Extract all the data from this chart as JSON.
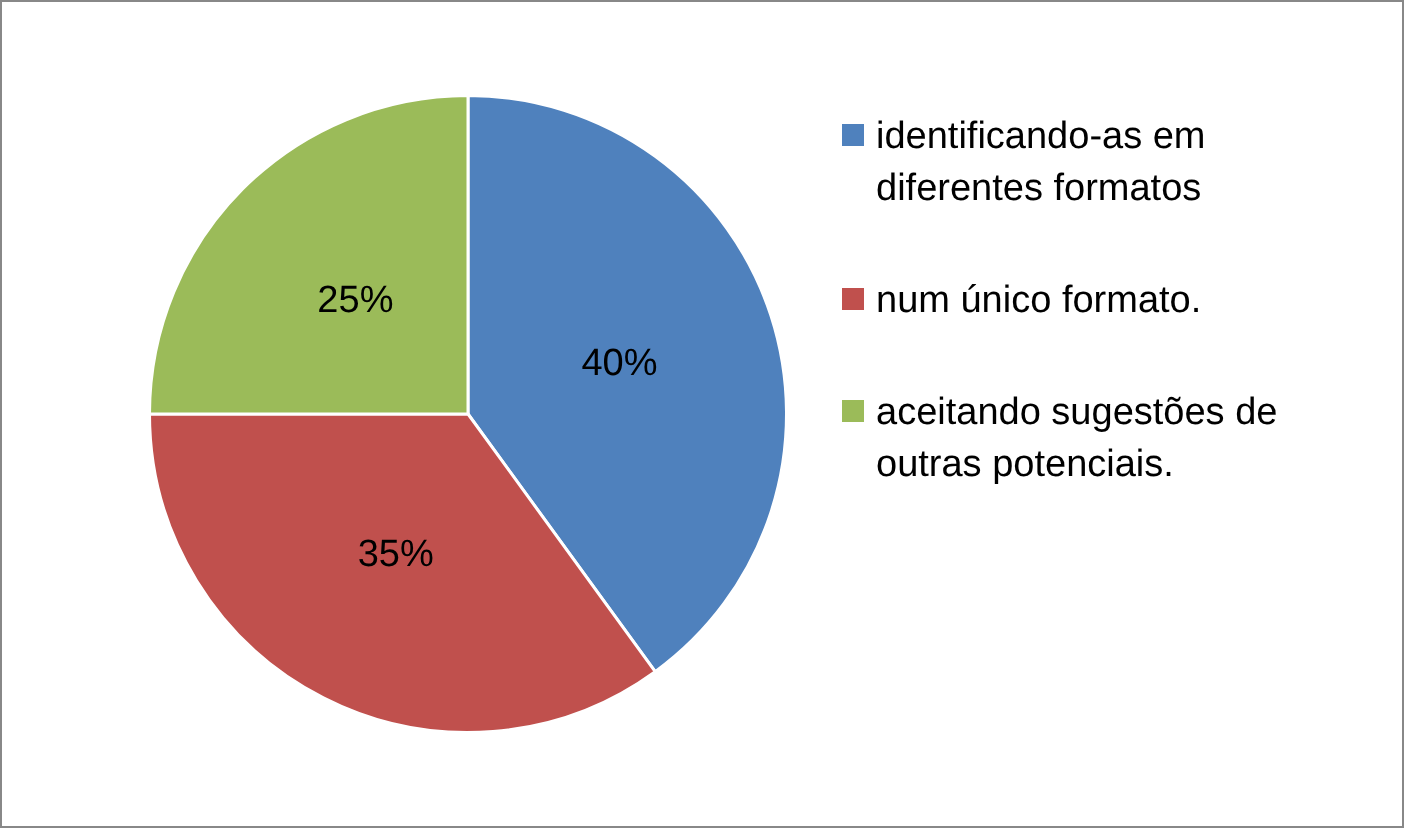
{
  "chart_data": {
    "type": "pie",
    "categories": [
      "identificando-as em diferentes formatos",
      "num único formato.",
      "aceitando sugestões de outras potenciais."
    ],
    "values": [
      40,
      35,
      25
    ],
    "colors": [
      "#4f81bd",
      "#c0504d",
      "#9bbb59"
    ],
    "value_labels": [
      "40%",
      "35%",
      "25%"
    ],
    "legend": "right"
  }
}
